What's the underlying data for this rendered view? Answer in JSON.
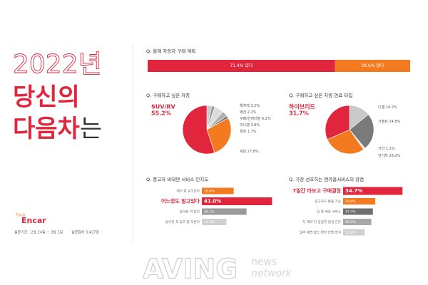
{
  "headline": {
    "year": "2022년",
    "line1": "당신의",
    "line2_red": "다음차",
    "line2_end": "는"
  },
  "logo": {
    "tagline": "Think",
    "name": "Encar"
  },
  "footer": {
    "period": "설문기간 : 2월 24일 ~ 3월 1일",
    "respondents": "설문참여 3,427명"
  },
  "watermark": {
    "brand": "AVING",
    "sub": "news",
    "network": "network"
  },
  "chart_data": [
    {
      "type": "stacked-bar",
      "title": "Q. 올해 자동차 구매 계획",
      "values": [
        71.4,
        28.6
      ],
      "value_labels": [
        "71.4% 있다",
        "28.6% 없다"
      ],
      "colors": [
        "#e1253c",
        "#f47a20"
      ]
    },
    {
      "type": "pie",
      "title": "Q. 구매하고 싶은 차종",
      "categories": [
        "해치백",
        "왜건",
        "쿠페/컨버터블",
        "미니밴",
        "경차",
        "세단",
        "SUV/RV"
      ],
      "values": [
        3.2,
        2.2,
        6.2,
        3.8,
        1.7,
        27.8,
        55.2
      ],
      "value_labels": [
        "3.2%",
        "2.2%",
        "6.2%",
        "3.8%",
        "1.7%",
        "27.8%",
        "55.2%"
      ],
      "colors": [
        "#c9c9c9",
        "#9a9a9a",
        "#dcdcdc",
        "#b0b0b0",
        "#777777",
        "#f47a20",
        "#e1253c"
      ],
      "highlight": 6
    },
    {
      "type": "pie",
      "title": "Q. 구매하고 싶은 차량 연료 타입",
      "categories": [
        "디젤",
        "가솔린",
        "기타",
        "전기차",
        "하이브리드"
      ],
      "values": [
        14.2,
        24.8,
        1.2,
        28.2,
        31.7
      ],
      "value_labels": [
        "14.2%",
        "24.8%",
        "1.2%",
        "28.2%",
        "31.7%"
      ],
      "colors": [
        "#c9c9c9",
        "#7a7a7a",
        "#e6e6e6",
        "#f47a20",
        "#e1253c"
      ],
      "highlight": 4
    },
    {
      "type": "hbar",
      "title": "Q. 중고차 비대면 서비스 인지도",
      "categories": [
        "매우 잘 알고있다",
        "어느정도 알고있다",
        "들어본 적 있다",
        "들어본 적 없고 잘 모른다"
      ],
      "values": [
        18.6,
        41.0,
        26.1,
        14.3
      ],
      "value_labels": [
        "18.6%",
        "41.0%",
        "26.1%",
        "14.3%"
      ],
      "colors": [
        "#f47a20",
        "#e1253c",
        "#9a9a9a",
        "#cfcfcf"
      ],
      "highlight": 1
    },
    {
      "type": "hbar",
      "title": "Q. 가장 선호하는 엔카홈서비스의 장점",
      "categories": [
        "7일간 타보고 구매결정",
        "중고차도 환불 가능",
        "집 앞 배송 서비스",
        "차 계약 전 꼼꼼한 점검 진단",
        "딜러 대면 없는 편안 진행 방식"
      ],
      "values": [
        34.7,
        18.8,
        17.4,
        16.5,
        12.6
      ],
      "value_labels": [
        "34.7%",
        "18.8%",
        "17.4%",
        "16.5%",
        "12.6%"
      ],
      "colors": [
        "#e1253c",
        "#f47a20",
        "#6f6f6f",
        "#a8a8a8",
        "#cfcfcf"
      ],
      "highlight": 0
    }
  ]
}
